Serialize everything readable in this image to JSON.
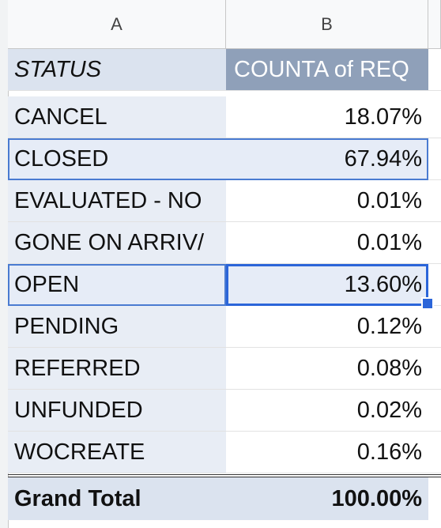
{
  "columns": {
    "a": "A",
    "b": "B"
  },
  "pivot": {
    "header": {
      "status": "STATUS",
      "value": "COUNTA of REQ"
    },
    "rows": [
      {
        "status": "CANCEL",
        "value": "18.07%"
      },
      {
        "status": "CLOSED",
        "value": "67.94%"
      },
      {
        "status": "EVALUATED - NO",
        "value": "0.01%"
      },
      {
        "status": "GONE ON ARRIV/",
        "value": "0.01%"
      },
      {
        "status": "OPEN",
        "value": "13.60%"
      },
      {
        "status": "PENDING",
        "value": "0.12%"
      },
      {
        "status": "REFERRED",
        "value": "0.08%"
      },
      {
        "status": "UNFUNDED",
        "value": "0.02%"
      },
      {
        "status": "WOCREATE",
        "value": "0.16%"
      }
    ],
    "total": {
      "label": "Grand Total",
      "value": "100.00%"
    }
  }
}
